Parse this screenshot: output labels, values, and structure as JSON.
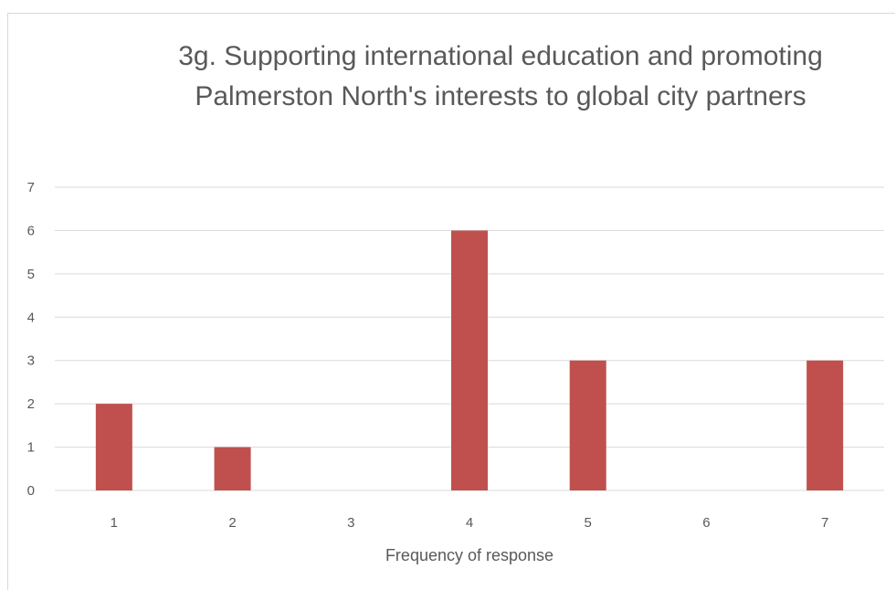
{
  "chart_data": {
    "type": "bar",
    "title": "3g. Supporting international education and promoting Palmerston North's interests to global city partners",
    "xlabel": "Frequency of response",
    "ylabel": "",
    "categories": [
      "1",
      "2",
      "3",
      "4",
      "5",
      "6",
      "7"
    ],
    "values": [
      2,
      1,
      0,
      6,
      3,
      0,
      3
    ],
    "ylim": [
      0,
      7
    ],
    "yticks": [
      "0",
      "1",
      "2",
      "3",
      "4",
      "5",
      "6",
      "7"
    ],
    "grid": true,
    "legend": "none",
    "bar_color": "#c0504d",
    "grid_color": "#d9d9d9",
    "text_color": "#595959"
  }
}
